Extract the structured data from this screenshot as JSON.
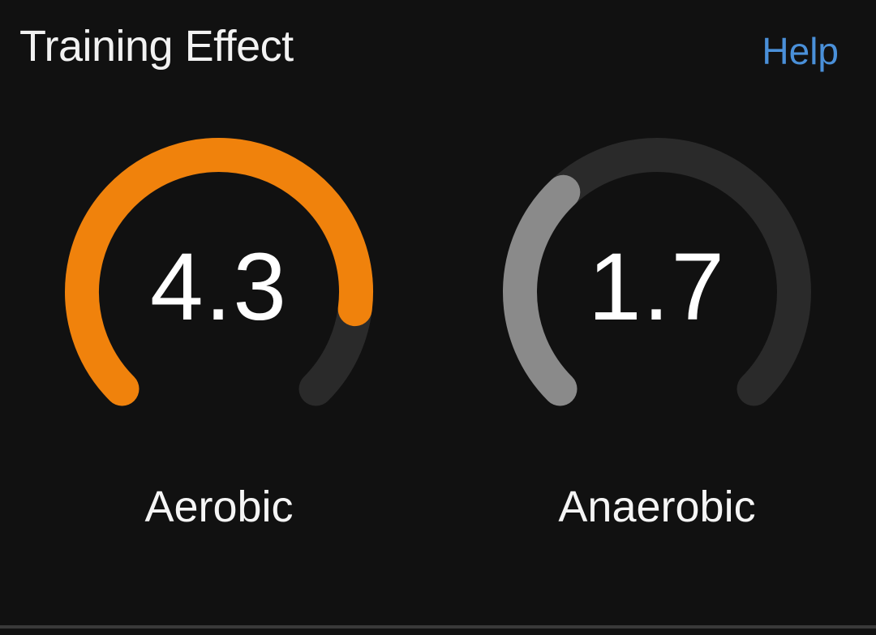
{
  "header": {
    "title": "Training Effect",
    "help_label": "Help"
  },
  "gauges": [
    {
      "id": "aerobic",
      "label": "Aerobic",
      "value_text": "4.3",
      "value": 4.3,
      "max": 5.0,
      "fill_color": "#f0820c",
      "track_color": "#2a2a2a"
    },
    {
      "id": "anaerobic",
      "label": "Anaerobic",
      "value_text": "1.7",
      "value": 1.7,
      "max": 5.0,
      "fill_color": "#8a8a8a",
      "track_color": "#2a2a2a"
    }
  ],
  "colors": {
    "background": "#111111",
    "accent_link": "#4a90d9"
  }
}
